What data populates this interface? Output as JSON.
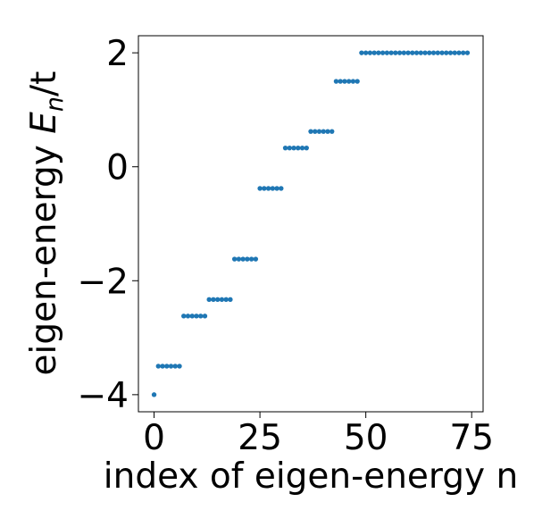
{
  "chart_data": {
    "type": "scatter",
    "xlabel": "index of eigen-energy n",
    "ylabel": "eigen-energy ",
    "ylabel_symbol": "E",
    "ylabel_subscript": "n",
    "ylabel_suffix": "/t",
    "xlim": [
      -3.7,
      77.7
    ],
    "ylim": [
      -4.3,
      2.3
    ],
    "xticks": [
      0,
      25,
      50,
      75
    ],
    "xtick_labels": [
      "0",
      "25",
      "50",
      "75"
    ],
    "yticks": [
      -4,
      -2,
      0,
      2
    ],
    "ytick_labels": [
      "−4",
      "−2",
      "0",
      "2"
    ],
    "grid": false,
    "marker_color": "#1f77b4",
    "levels": [
      {
        "energy": -4.0,
        "n_start": 0,
        "n_end": 0
      },
      {
        "energy": -3.5,
        "n_start": 1,
        "n_end": 6
      },
      {
        "energy": -2.62,
        "n_start": 7,
        "n_end": 12
      },
      {
        "energy": -2.33,
        "n_start": 13,
        "n_end": 18
      },
      {
        "energy": -1.62,
        "n_start": 19,
        "n_end": 24
      },
      {
        "energy": -0.38,
        "n_start": 25,
        "n_end": 30
      },
      {
        "energy": 0.33,
        "n_start": 31,
        "n_end": 36
      },
      {
        "energy": 0.62,
        "n_start": 37,
        "n_end": 42
      },
      {
        "energy": 1.5,
        "n_start": 43,
        "n_end": 48
      },
      {
        "energy": 2.0,
        "n_start": 49,
        "n_end": 74
      }
    ]
  }
}
